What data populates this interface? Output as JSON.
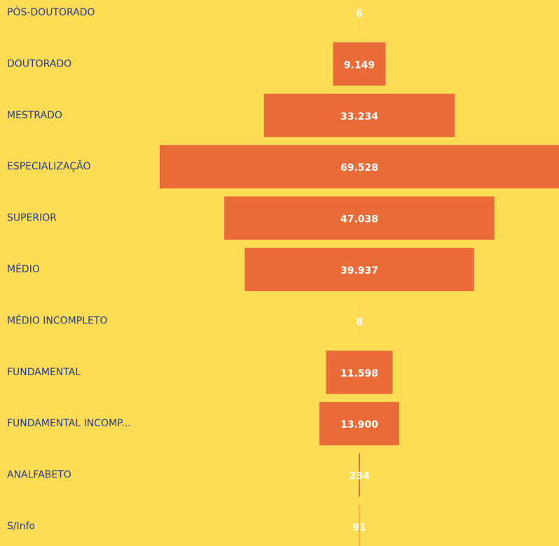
{
  "chart_data": {
    "type": "funnel",
    "categories": [
      "PÓS-DOUTORADO",
      "DOUTORADO",
      "MESTRADO",
      "ESPECIALIZAÇÃO",
      "SUPERIOR",
      "MÉDIO",
      "MÉDIO INCOMPLETO",
      "FUNDAMENTAL",
      "FUNDAMENTAL INCOMP...",
      "ANALFABETO",
      "S/Info"
    ],
    "values": [
      6,
      9149,
      33234,
      69528,
      47038,
      39937,
      8,
      11598,
      13900,
      234,
      91
    ],
    "value_labels": [
      "6",
      "9.149",
      "33.234",
      "69.528",
      "47.038",
      "39.937",
      "8",
      "11.598",
      "13.900",
      "234",
      "91"
    ],
    "color": "#e86b38"
  }
}
